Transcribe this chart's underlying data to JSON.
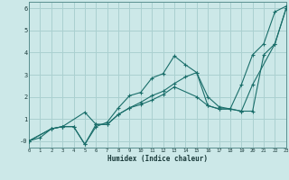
{
  "title": "",
  "xlabel": "Humidex (Indice chaleur)",
  "bg_color": "#cce8e8",
  "grid_color": "#aad0d0",
  "line_color": "#1a6e6a",
  "xlim": [
    0,
    23
  ],
  "ylim": [
    -0.3,
    6.3
  ],
  "xticks": [
    0,
    1,
    2,
    3,
    4,
    5,
    6,
    7,
    8,
    9,
    10,
    11,
    12,
    13,
    14,
    15,
    16,
    17,
    18,
    19,
    20,
    21,
    22,
    23
  ],
  "yticks": [
    0,
    1,
    2,
    3,
    4,
    5,
    6
  ],
  "ytick_labels": [
    "-0",
    "1",
    "2",
    "3",
    "4",
    "5",
    "6"
  ],
  "line1_x": [
    0,
    1,
    2,
    3,
    4,
    5,
    6,
    7,
    8,
    9,
    10,
    11,
    12,
    13,
    14,
    15,
    16,
    17,
    18,
    19,
    20,
    21,
    22,
    23
  ],
  "line1_y": [
    0,
    0.15,
    0.55,
    0.65,
    0.65,
    -0.15,
    0.65,
    0.85,
    1.5,
    2.05,
    2.2,
    2.85,
    3.05,
    3.85,
    3.45,
    3.1,
    2.0,
    1.55,
    1.45,
    2.55,
    3.9,
    4.4,
    5.85,
    6.1
  ],
  "line2_x": [
    0,
    2,
    3,
    4,
    5,
    6,
    7,
    8,
    9,
    10,
    11,
    12,
    13,
    14,
    15,
    16,
    17,
    18,
    19,
    20,
    21,
    22,
    23
  ],
  "line2_y": [
    0,
    0.55,
    0.65,
    0.65,
    -0.15,
    0.75,
    0.75,
    1.2,
    1.5,
    1.75,
    2.05,
    2.25,
    2.6,
    2.9,
    3.1,
    1.6,
    1.45,
    1.45,
    1.35,
    1.35,
    3.9,
    4.4,
    6.0
  ],
  "line3_x": [
    0,
    2,
    3,
    5,
    6,
    7,
    8,
    9,
    10,
    11,
    12,
    13,
    15,
    16,
    17,
    18,
    19,
    20,
    22,
    23
  ],
  "line3_y": [
    0,
    0.55,
    0.65,
    1.3,
    0.75,
    0.75,
    1.2,
    1.5,
    1.65,
    1.85,
    2.1,
    2.45,
    2.0,
    1.6,
    1.45,
    1.45,
    1.35,
    2.55,
    4.4,
    6.0
  ]
}
